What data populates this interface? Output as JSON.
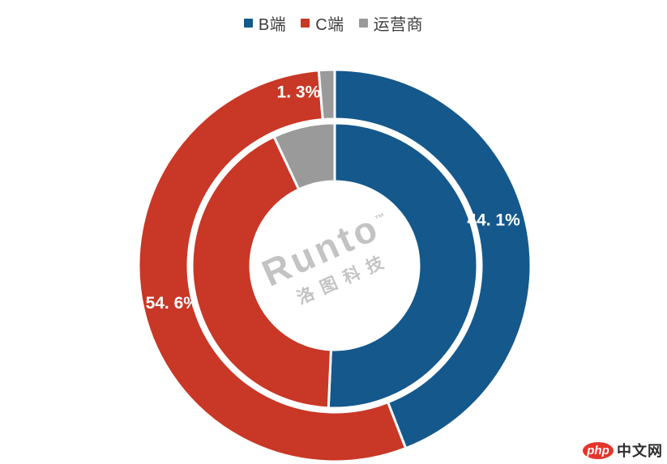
{
  "page": {
    "background": "#ffffff"
  },
  "legend": {
    "items": [
      {
        "label": "B端"
      },
      {
        "label": "C端"
      },
      {
        "label": "运营商"
      }
    ]
  },
  "chart_data": {
    "type": "pie",
    "subtype": "double-ring-donut",
    "title": "",
    "categories": [
      "B端",
      "C端",
      "运营商"
    ],
    "colors": [
      "#14588c",
      "#c93726",
      "#9b9a9a"
    ],
    "start_angle_deg": 0,
    "direction": "clockwise",
    "label_color": "#ffffff",
    "rings": [
      {
        "name": "outer",
        "values": [
          44.1,
          54.6,
          1.3
        ],
        "labels": [
          "44. 1%",
          "54. 6%",
          "1. 3%"
        ],
        "labels_visible": true
      },
      {
        "name": "inner",
        "values": [
          50.7,
          42.3,
          7.0
        ],
        "labels": [],
        "labels_visible": false,
        "note": "no data labels shown; values estimated from arc angles"
      }
    ]
  },
  "watermark": {
    "brand": "Runto",
    "tm": "™",
    "sub": "洛图科技"
  },
  "footer_logo": {
    "badge": "php",
    "text": "中文网",
    "badge_color": "#e3352b"
  }
}
